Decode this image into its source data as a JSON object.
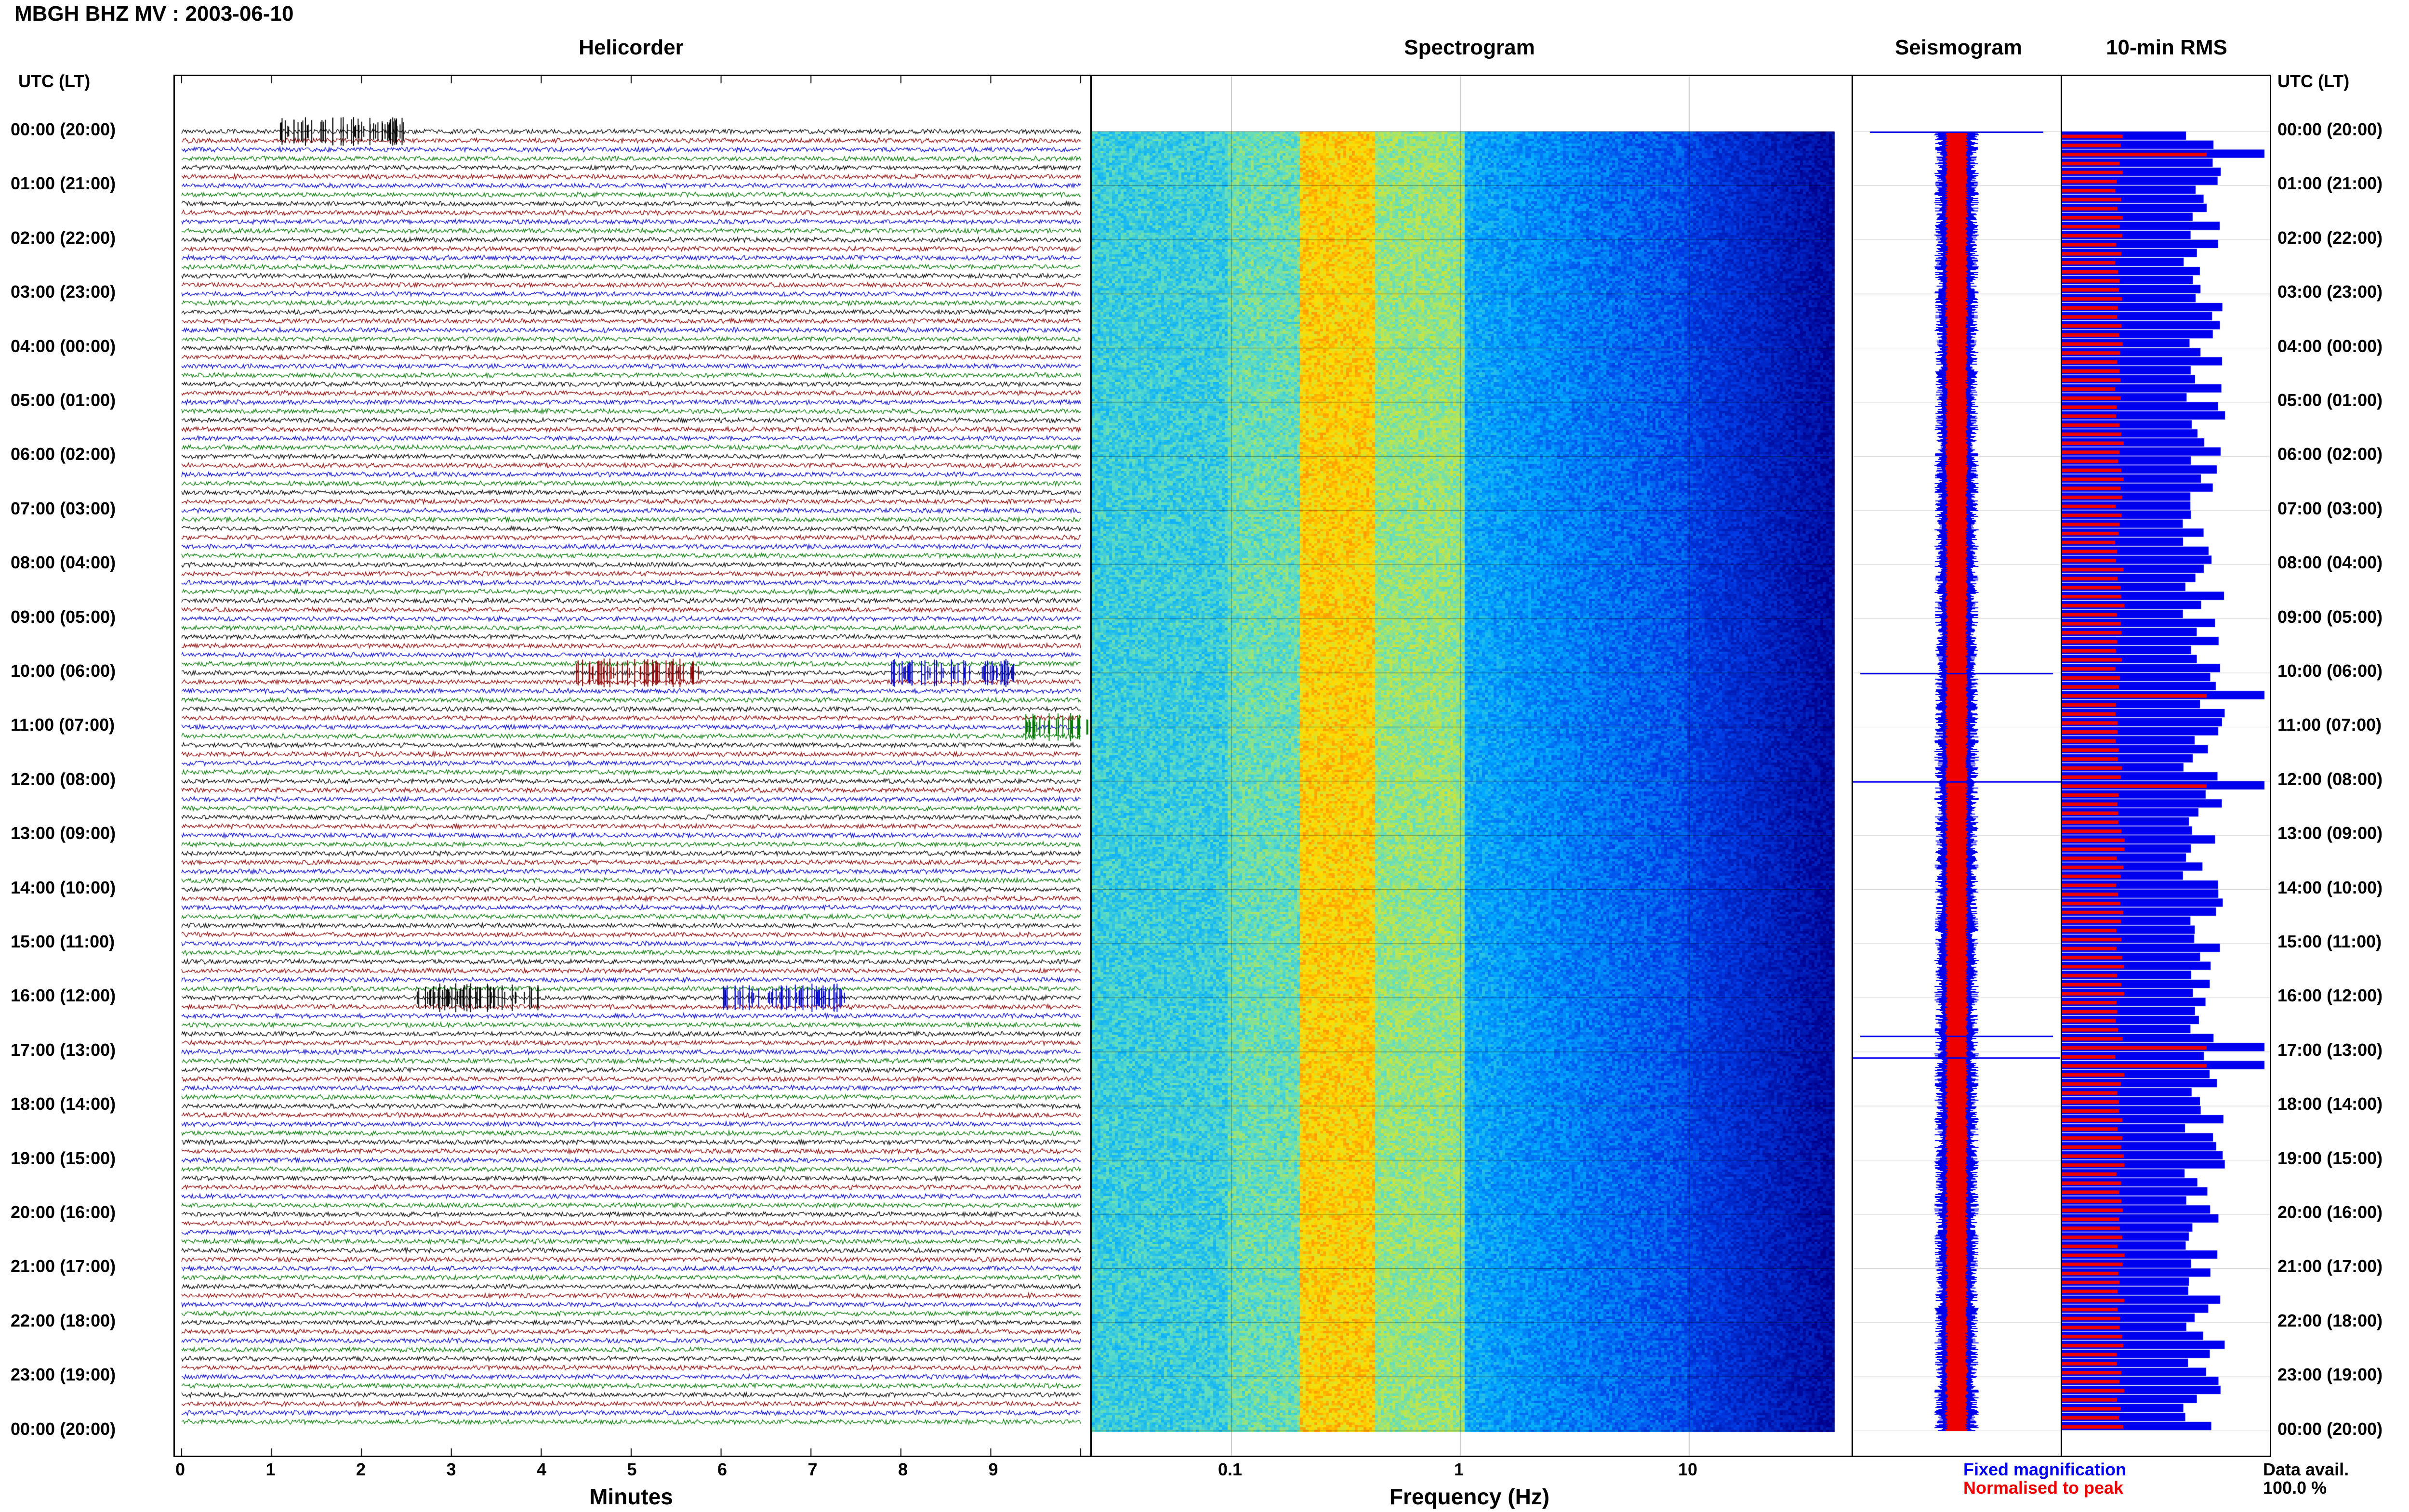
{
  "title": "MBGH BHZ MV : 2003-06-10",
  "panels": {
    "helicorder": "Helicorder",
    "spectrogram": "Spectrogram",
    "seismogram": "Seismogram",
    "rms": "10-min RMS"
  },
  "time_axis_header": "UTC (LT)",
  "hour_labels": [
    "00:00 (20:00)",
    "01:00 (21:00)",
    "02:00 (22:00)",
    "03:00 (23:00)",
    "04:00 (00:00)",
    "05:00 (01:00)",
    "06:00 (02:00)",
    "07:00 (03:00)",
    "08:00 (04:00)",
    "09:00 (05:00)",
    "10:00 (06:00)",
    "11:00 (07:00)",
    "12:00 (08:00)",
    "13:00 (09:00)",
    "14:00 (10:00)",
    "15:00 (11:00)",
    "16:00 (12:00)",
    "17:00 (13:00)",
    "18:00 (14:00)",
    "19:00 (15:00)",
    "20:00 (16:00)",
    "21:00 (17:00)",
    "22:00 (18:00)",
    "23:00 (19:00)",
    "00:00 (20:00)"
  ],
  "helicorder_x": {
    "label": "Minutes",
    "ticks": [
      "0",
      "1",
      "2",
      "3",
      "4",
      "5",
      "6",
      "7",
      "8",
      "9"
    ]
  },
  "spectrogram_x": {
    "label": "Frequency (Hz)",
    "ticks": [
      "0.1",
      "1",
      "10"
    ]
  },
  "legend": {
    "fixed": "Fixed magnification",
    "normalised": "Normalised to peak",
    "fixed_color": "#0000ee",
    "normalised_color": "#ee0000"
  },
  "data_avail": {
    "label": "Data avail.",
    "value": "100.0 %"
  },
  "trace_colors": [
    "#000000",
    "#8b0000",
    "#0000cc",
    "#007700"
  ],
  "chart_data": {
    "type": "helicorder+spectrogram+rms",
    "station": "MBGH BHZ MV",
    "date": "2003-06-10",
    "hours": 24,
    "minutes_per_line": 10,
    "frequency_range_hz": [
      0.02,
      40
    ],
    "events": [
      {
        "utc_hour": 0,
        "minute": 1.5
      },
      {
        "utc_hour": 10,
        "minute": 8.3
      },
      {
        "utc_hour": 10,
        "minute": 4.8
      },
      {
        "utc_hour": 11,
        "minute": 9.8
      },
      {
        "utc_hour": 16,
        "minute": 3.0
      },
      {
        "utc_hour": 16,
        "minute": 6.4
      }
    ],
    "spectral_peak_hz": [
      0.2,
      0.5
    ]
  }
}
